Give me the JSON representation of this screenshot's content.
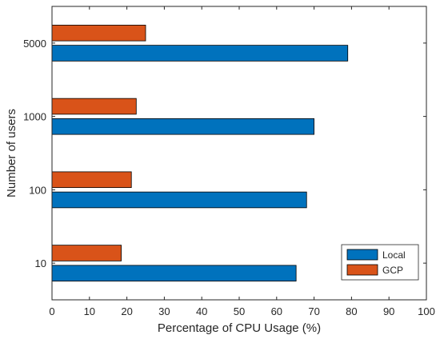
{
  "chart_data": {
    "type": "bar",
    "orientation": "horizontal",
    "categories": [
      "10",
      "100",
      "1000",
      "5000"
    ],
    "series": [
      {
        "name": "Local",
        "values": [
          65.2,
          68.0,
          70.0,
          79.0
        ],
        "color": "#0072BD"
      },
      {
        "name": "GCP",
        "values": [
          18.5,
          21.2,
          22.5,
          25.0
        ],
        "color": "#D95319"
      }
    ],
    "xlabel": "Percentage of CPU Usage (%)",
    "ylabel": "Number of users",
    "xlim": [
      0,
      100
    ],
    "xticks": [
      "0",
      "10",
      "20",
      "30",
      "40",
      "50",
      "60",
      "70",
      "80",
      "90",
      "100"
    ],
    "grid": false,
    "legend_position": "bottom-right"
  }
}
